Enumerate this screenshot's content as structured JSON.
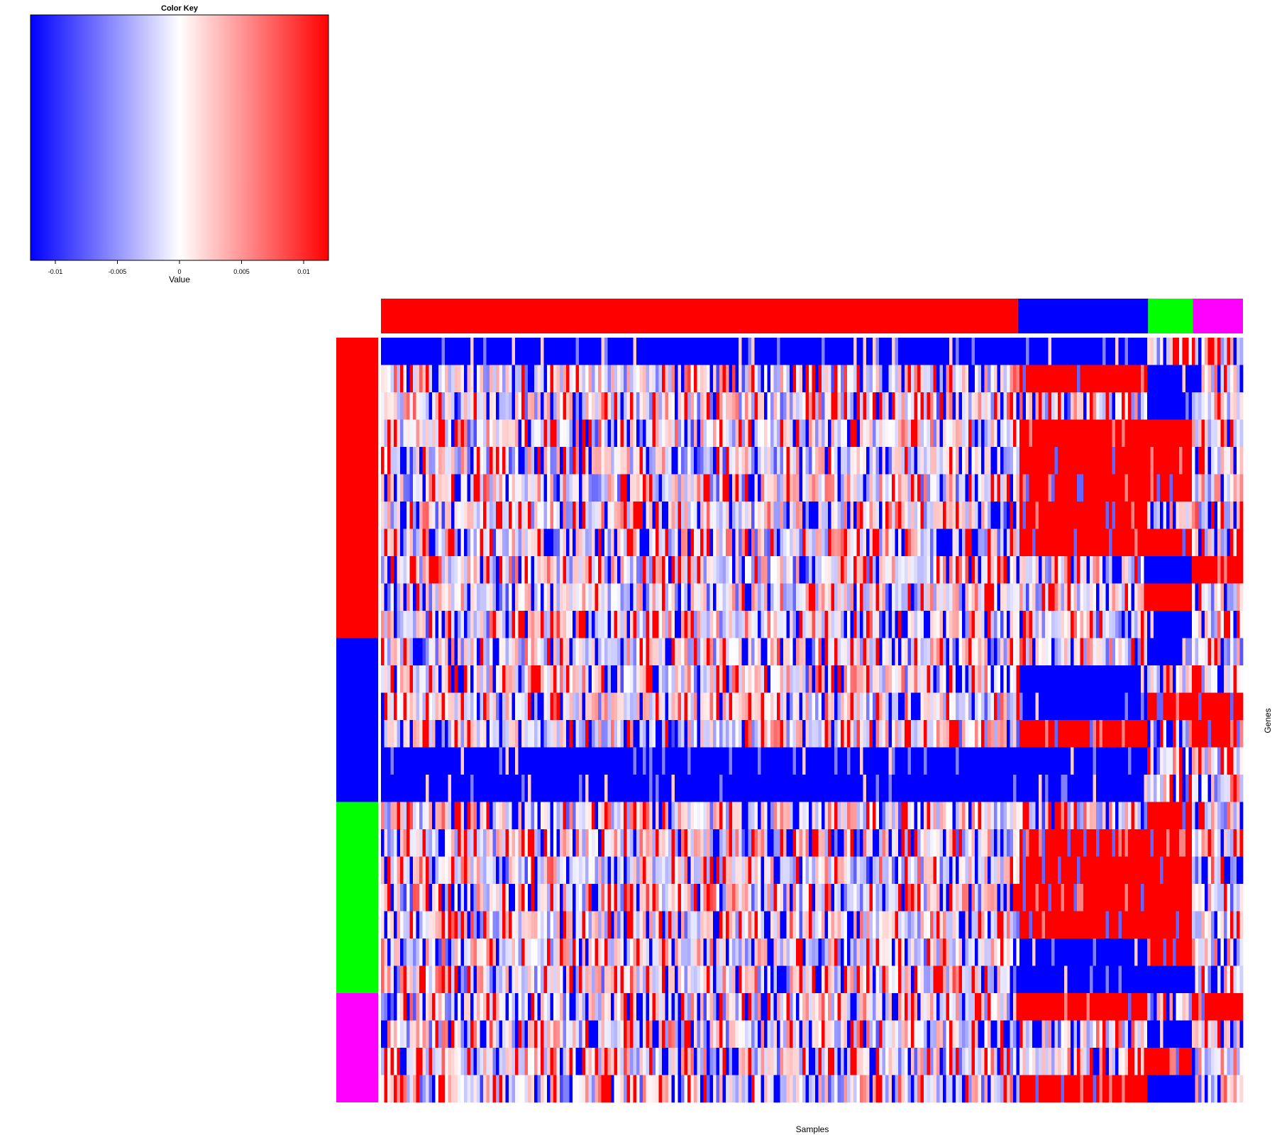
{
  "chart_data": [
    {
      "type": "colorbar",
      "title": "Color Key",
      "xlabel": "Value",
      "range": [
        -0.012,
        0.012
      ],
      "ticks": [
        -0.01,
        -0.005,
        0,
        0.005,
        0.01
      ],
      "tick_labels": [
        "-0.01",
        "-0.005",
        "0",
        "0.005",
        "0.01"
      ],
      "colors": [
        "#0000ff",
        "#ffffff",
        "#ff0000"
      ]
    },
    {
      "type": "heatmap",
      "xlabel": "Samples",
      "ylabel": "Genes",
      "n_rows": 28,
      "column_groups": [
        {
          "color": "#ff0000",
          "fraction": 0.739
        },
        {
          "color": "#0000ff",
          "fraction": 0.151
        },
        {
          "color": "#00ff00",
          "fraction": 0.052
        },
        {
          "color": "#ff00ff",
          "fraction": 0.058
        }
      ],
      "row_groups": [
        {
          "color": "#ff0000",
          "rows": 11
        },
        {
          "color": "#0000ff",
          "rows": 6
        },
        {
          "color": "#00ff00",
          "rows": 7
        },
        {
          "color": "#ff00ff",
          "rows": 4
        }
      ],
      "row_block_patterns": [
        [
          "blue",
          "blue",
          "mixed",
          "mixed"
        ],
        [
          "mixed",
          "red",
          "blue",
          "mixed"
        ],
        [
          "mixed",
          "mixed",
          "blue",
          "mixed"
        ],
        [
          "mixed",
          "red",
          "red",
          "mixed"
        ],
        [
          "mixed",
          "red",
          "red",
          "mixed"
        ],
        [
          "mixed",
          "red",
          "red",
          "mixed"
        ],
        [
          "mixed",
          "red",
          "mixed",
          "mixed"
        ],
        [
          "mixed",
          "red",
          "red",
          "mixed"
        ],
        [
          "mixed",
          "mixed",
          "blue",
          "red"
        ],
        [
          "mixed",
          "mixed",
          "red",
          "mixed"
        ],
        [
          "mixed",
          "mixed",
          "blue",
          "mixed"
        ],
        [
          "mixed",
          "mixed",
          "blue",
          "mixed"
        ],
        [
          "mixed",
          "blue",
          "mixed",
          "mixed"
        ],
        [
          "mixed",
          "blue",
          "red",
          "red"
        ],
        [
          "mixed",
          "red",
          "mixed",
          "red"
        ],
        [
          "blue",
          "blue",
          "mixed",
          "mixed"
        ],
        [
          "blue",
          "blue",
          "mixed",
          "mixed"
        ],
        [
          "mixed",
          "mixed",
          "red",
          "mixed"
        ],
        [
          "mixed",
          "red",
          "red",
          "mixed"
        ],
        [
          "mixed",
          "red",
          "red",
          "mixed"
        ],
        [
          "mixed",
          "red",
          "red",
          "mixed"
        ],
        [
          "mixed",
          "red",
          "red",
          "mixed"
        ],
        [
          "mixed",
          "blue",
          "red",
          "mixed"
        ],
        [
          "mixed",
          "blue",
          "blue",
          "mixed"
        ],
        [
          "mixed",
          "red",
          "mixed",
          "red"
        ],
        [
          "mixed",
          "mixed",
          "blue",
          "mixed"
        ],
        [
          "mixed",
          "mixed",
          "red",
          "mixed"
        ],
        [
          "mixed",
          "red",
          "blue",
          "mixed"
        ]
      ]
    }
  ]
}
